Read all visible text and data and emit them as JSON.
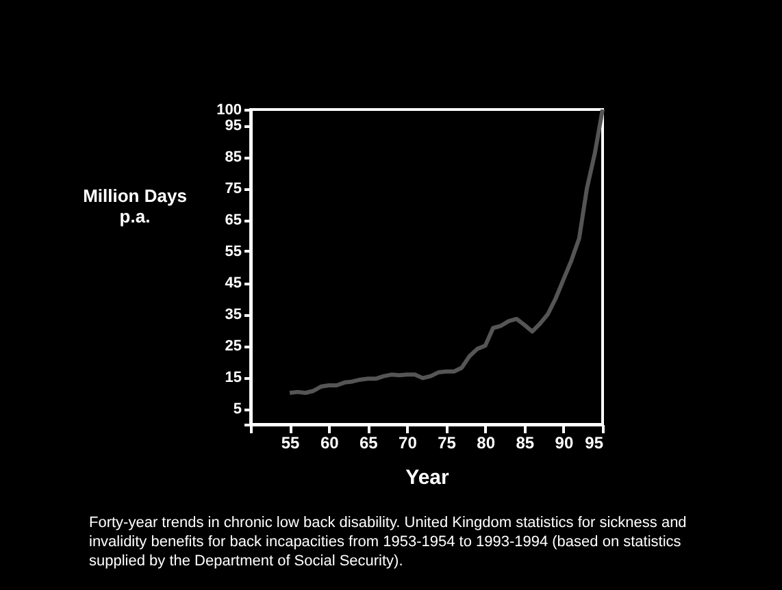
{
  "chart_data": {
    "type": "line",
    "xlabel": "Year",
    "ylabel": "Million Days p.a.",
    "x": [
      55,
      56,
      57,
      58,
      59,
      60,
      61,
      62,
      63,
      64,
      65,
      66,
      67,
      68,
      69,
      70,
      71,
      72,
      73,
      74,
      75,
      76,
      77,
      78,
      79,
      80,
      81,
      82,
      83,
      84,
      85,
      86,
      87,
      88,
      89,
      90,
      91,
      92,
      93,
      94,
      95
    ],
    "series": [
      {
        "color": "#555555",
        "values": [
          10,
          10.3,
          10,
          10.6,
          12,
          12.4,
          12.4,
          13.3,
          13.6,
          14.2,
          14.5,
          14.5,
          15.3,
          15.8,
          15.6,
          15.8,
          15.8,
          14.7,
          15.3,
          16.5,
          16.8,
          16.8,
          18,
          21.7,
          24,
          25,
          30.6,
          31.3,
          32.8,
          33.5,
          31.6,
          29.5,
          32,
          35,
          40,
          46,
          52,
          59,
          75,
          86,
          100
        ]
      }
    ],
    "xlim": [
      50,
      95
    ],
    "xticks": [
      {
        "value": 50,
        "label": null
      },
      55,
      60,
      65,
      70,
      75,
      80,
      85,
      90,
      95
    ],
    "ylim": [
      0,
      100
    ],
    "yticks": [
      {
        "value": 0,
        "label": null
      },
      5,
      15,
      25,
      35,
      45,
      55,
      65,
      75,
      85,
      95,
      100
    ],
    "grid": false,
    "marker": "none",
    "line_style": "solid",
    "annotations": [
      "Forty-year trends in chronic low back disability.  United Kingdom statistics for sickness and invalidity benefits for back incapacities from 1953-1954 to 1993-1994 (based on statistics supplied by the Department of Social Security)."
    ]
  }
}
